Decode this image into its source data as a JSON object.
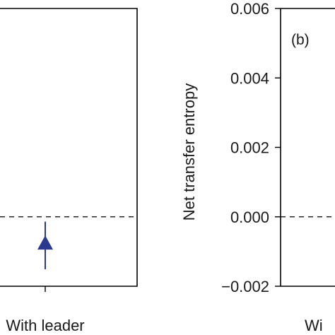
{
  "chart_data": [
    {
      "type": "scatter",
      "panel_label": "",
      "categories": [
        "With leader"
      ],
      "series": [
        {
          "color": "#2b3a8f",
          "marker": "triangle",
          "values": [
            -0.00074
          ],
          "err_low": [
            -0.00151
          ],
          "err_high": [
            -0.00014
          ]
        }
      ],
      "reference_line": 0.0,
      "ylim": [
        -0.002,
        0.006
      ],
      "ylabel": "",
      "xlabel": "",
      "grid": false,
      "legend": "none"
    },
    {
      "type": "scatter",
      "panel_label": "(b)",
      "categories": [
        "Wi"
      ],
      "ylim": [
        -0.002,
        0.006
      ],
      "yticks": [
        "0.006",
        "0.004",
        "0.002",
        "0.000",
        "−0.002"
      ],
      "ylabel": "Net transfer entropy",
      "reference_line": 0.0,
      "grid": false,
      "legend": "none"
    }
  ]
}
